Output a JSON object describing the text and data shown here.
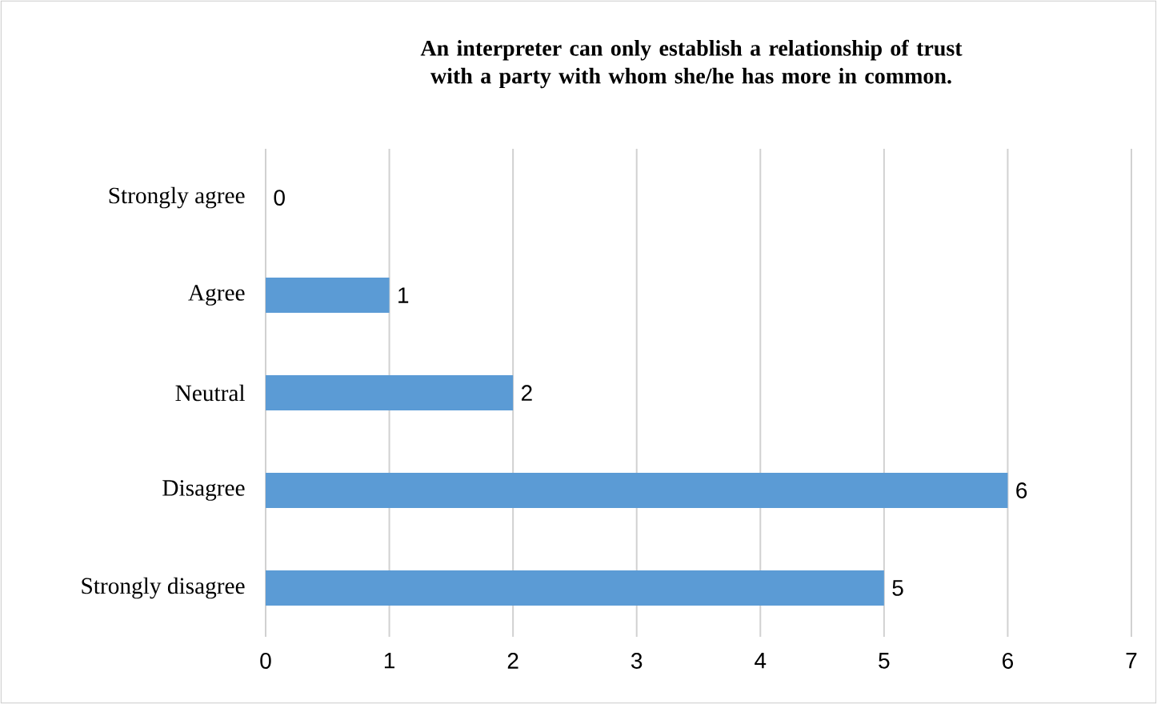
{
  "chart_data": {
    "type": "bar",
    "orientation": "horizontal",
    "title": "An interpreter can only establish a relationship of trust with a party with whom she/he has more in common.",
    "categories": [
      "Strongly agree",
      "Agree",
      "Neutral",
      "Disagree",
      "Strongly disagree"
    ],
    "values": [
      0,
      1,
      2,
      6,
      5
    ],
    "color": "#5b9bd5",
    "xlim": [
      0,
      7
    ],
    "xticks": [
      0,
      1,
      2,
      3,
      4,
      5,
      6,
      7
    ],
    "grid": "x",
    "data_labels": true
  }
}
